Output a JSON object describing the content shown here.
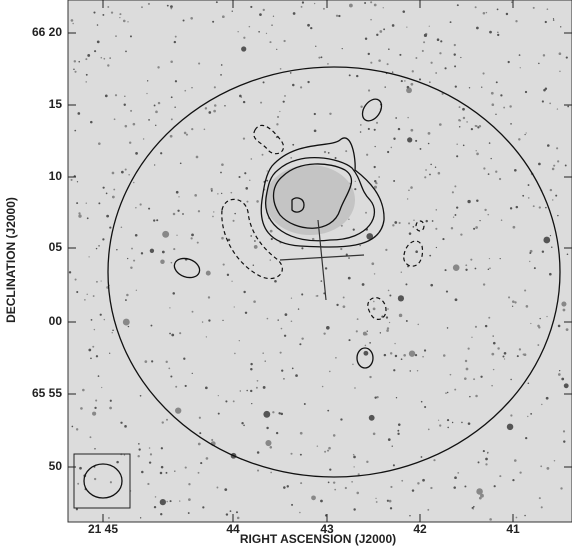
{
  "axes": {
    "x_title": "RIGHT ASCENSION (J2000)",
    "y_title": "DECLINATION (J2000)",
    "x_ticks": [
      "21 45",
      "44",
      "43",
      "42",
      "41"
    ],
    "y_ticks": [
      "66 20",
      "15",
      "10",
      "05",
      "00",
      "65 55",
      "50"
    ]
  }
}
